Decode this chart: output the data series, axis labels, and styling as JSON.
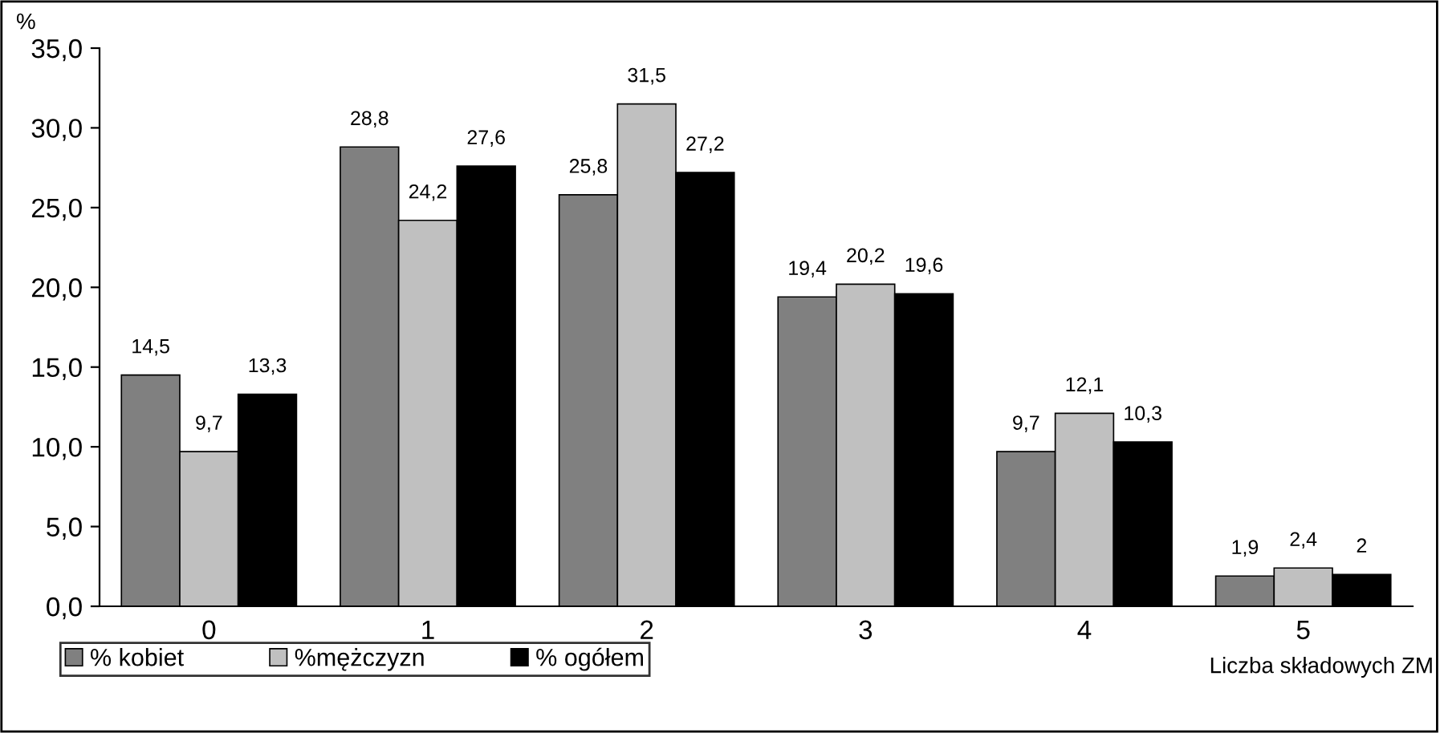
{
  "chart_data": {
    "type": "bar",
    "ylabel": "%",
    "xlabel": "Liczba składowych ZM",
    "categories": [
      "0",
      "1",
      "2",
      "3",
      "4",
      "5"
    ],
    "series": [
      {
        "name": "% kobiet",
        "color": "#808080",
        "values": [
          14.5,
          28.8,
          25.8,
          19.4,
          9.7,
          1.9
        ],
        "value_labels": [
          "14,5",
          "28,8",
          "25,8",
          "19,4",
          "9,7",
          "1,9"
        ]
      },
      {
        "name": "%mężczyzn",
        "color": "#c0c0c0",
        "values": [
          9.7,
          24.2,
          31.5,
          20.2,
          12.1,
          2.4
        ],
        "value_labels": [
          "9,7",
          "24,2",
          "31,5",
          "20,2",
          "12,1",
          "2,4"
        ]
      },
      {
        "name": "% ogółem",
        "color": "#000000",
        "values": [
          13.3,
          27.6,
          27.2,
          19.6,
          10.3,
          2
        ],
        "value_labels": [
          "13,3",
          "27,6",
          "27,2",
          "19,6",
          "10,3",
          "2"
        ]
      }
    ],
    "ylim": [
      0,
      35
    ],
    "yticks": [
      {
        "value": 0,
        "label": "0,0"
      },
      {
        "value": 5,
        "label": "5,0"
      },
      {
        "value": 10,
        "label": "10,0"
      },
      {
        "value": 15,
        "label": "15,0"
      },
      {
        "value": 20,
        "label": "20,0"
      },
      {
        "value": 25,
        "label": "25,0"
      },
      {
        "value": 30,
        "label": "30,0"
      },
      {
        "value": 35,
        "label": "35,0"
      }
    ],
    "grid": false,
    "legend": "bottom left"
  }
}
